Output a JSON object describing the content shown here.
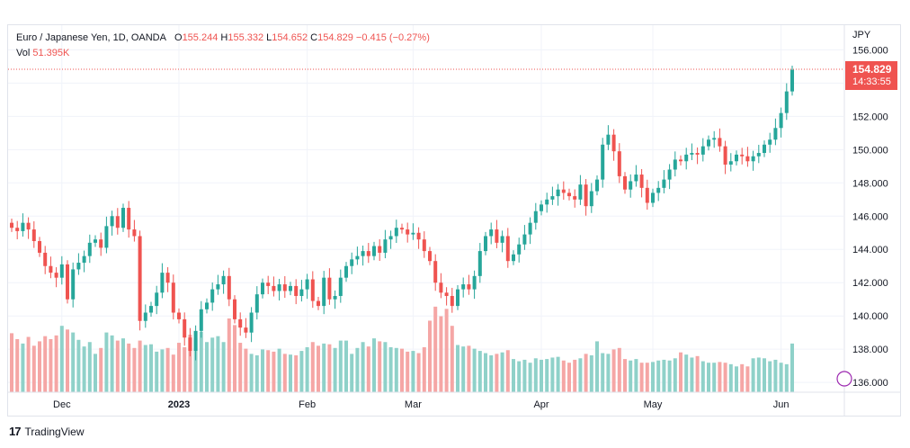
{
  "legend": {
    "symbol": "Euro / Japanese Yen, 1D, OANDA",
    "o_label": "O",
    "o_value": "155.244",
    "h_label": "H",
    "h_value": "155.332",
    "l_label": "L",
    "l_value": "154.652",
    "c_label": "C",
    "c_value": "154.829",
    "change": "−0.415 (−0.27%)",
    "vol_label": "Vol",
    "vol_value": "51.395K"
  },
  "currency": "JPY",
  "price_tag": {
    "price": "154.829",
    "countdown": "14:33:55"
  },
  "brand": {
    "logo": "17",
    "name": "TradingView"
  },
  "colors": {
    "up": "#26a69a",
    "down": "#ef5350",
    "up_vol": "#8fd1c9",
    "down_vol": "#f5a6a5",
    "grid": "#f0f3fa",
    "text": "#131722"
  },
  "chart_data": {
    "type": "candlestick",
    "title": "Euro / Japanese Yen, 1D, OANDA",
    "ylim": [
      135.9,
      156.4
    ],
    "y_ticks": [
      "136.000",
      "138.000",
      "140.000",
      "142.000",
      "144.000",
      "146.000",
      "148.000",
      "150.000",
      "152.000",
      "154.000",
      "156.000"
    ],
    "x_tick_labels": [
      "Dec",
      "2023",
      "Feb",
      "Mar",
      "Apr",
      "May",
      "Jun"
    ],
    "last_price": 154.829,
    "closes": [
      145.3,
      145.1,
      145.6,
      145.2,
      144.5,
      143.8,
      143.0,
      142.6,
      142.3,
      143.1,
      141.0,
      142.8,
      143.2,
      143.6,
      144.4,
      144.6,
      144.1,
      145.4,
      146.0,
      145.3,
      146.5,
      145.2,
      144.8,
      139.7,
      140.2,
      140.6,
      141.4,
      142.6,
      142.0,
      140.2,
      139.8,
      138.7,
      137.9,
      139.1,
      140.4,
      140.8,
      141.6,
      141.9,
      142.4,
      141.0,
      139.8,
      139.3,
      139.0,
      140.2,
      141.3,
      142.0,
      141.8,
      141.5,
      141.9,
      141.5,
      141.8,
      141.2,
      141.6,
      142.2,
      140.9,
      140.6,
      142.3,
      141.0,
      141.2,
      142.3,
      143.0,
      143.4,
      143.6,
      143.9,
      143.6,
      144.2,
      143.8,
      144.6,
      144.8,
      145.3,
      145.2,
      144.9,
      145.0,
      144.6,
      143.9,
      143.3,
      142.0,
      141.4,
      141.2,
      140.6,
      141.6,
      141.9,
      141.6,
      142.4,
      143.9,
      144.8,
      145.2,
      144.4,
      144.8,
      143.3,
      143.7,
      144.3,
      144.9,
      145.6,
      146.3,
      146.7,
      147.0,
      147.2,
      147.6,
      147.4,
      147.2,
      147.0,
      147.9,
      146.6,
      147.5,
      148.2,
      150.3,
      150.9,
      149.9,
      148.4,
      147.6,
      148.1,
      148.5,
      147.7,
      146.8,
      147.4,
      147.7,
      148.2,
      148.8,
      149.4,
      149.3,
      149.7,
      149.8,
      149.7,
      150.2,
      150.6,
      150.7,
      150.2,
      149.1,
      149.3,
      149.7,
      149.6,
      149.3,
      149.6,
      149.8,
      150.3,
      150.6,
      151.3,
      152.2,
      153.5,
      154.8
    ],
    "volumes": [
      8.0,
      7.2,
      6.6,
      7.5,
      6.3,
      6.9,
      7.6,
      7.2,
      7.7,
      9.0,
      8.5,
      8.1,
      7.1,
      6.2,
      6.8,
      5.2,
      6.0,
      8.1,
      7.7,
      7.0,
      7.3,
      6.6,
      6.0,
      7.0,
      6.4,
      6.5,
      5.5,
      5.8,
      6.0,
      5.1,
      6.7,
      6.1,
      7.8,
      7.3,
      8.2,
      6.8,
      7.4,
      7.6,
      6.8,
      10.0,
      9.1,
      6.7,
      5.9,
      5.2,
      5.0,
      5.8,
      5.7,
      5.5,
      5.9,
      5.2,
      5.1,
      5.0,
      5.6,
      6.1,
      6.8,
      6.3,
      6.6,
      6.5,
      6.0,
      7.0,
      7.0,
      5.2,
      6.0,
      6.8,
      6.2,
      7.3,
      6.9,
      6.8,
      6.1,
      6.0,
      5.9,
      5.5,
      5.6,
      5.3,
      6.1,
      9.7,
      11.6,
      10.3,
      11.3,
      9.0,
      6.4,
      6.2,
      6.3,
      5.9,
      5.6,
      5.3,
      5.0,
      5.2,
      5.4,
      5.7,
      4.5,
      4.2,
      4.4,
      4.0,
      4.6,
      4.4,
      4.5,
      4.7,
      4.8,
      4.3,
      4.0,
      4.4,
      4.6,
      5.2,
      5.0,
      6.9,
      5.3,
      5.2,
      5.8,
      6.0,
      4.5,
      4.3,
      4.5,
      4.0,
      4.0,
      4.1,
      4.3,
      4.4,
      4.3,
      4.6,
      5.4,
      5.1,
      4.7,
      4.9,
      4.2,
      4.0,
      4.0,
      4.1,
      4.0,
      3.8,
      3.5,
      3.8,
      3.5,
      4.6,
      4.7,
      4.6,
      4.2,
      4.4,
      4.0,
      3.8,
      6.6,
      6.7,
      6.5
    ]
  }
}
